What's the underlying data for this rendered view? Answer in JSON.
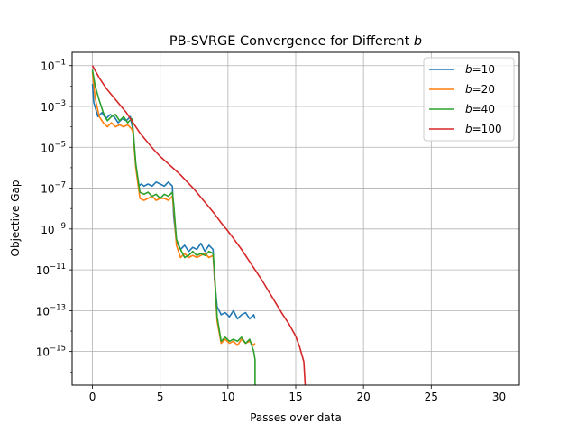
{
  "chart_data": {
    "type": "line",
    "title": "PB-SVRGE Convergence for Different",
    "title_var": "b",
    "xlabel": "Passes over data",
    "ylabel": "Objective Gap",
    "xlim": [
      -1.5,
      31.5
    ],
    "ylim_log10": [
      -16.65,
      -0.35
    ],
    "yscale": "log",
    "grid": true,
    "legend_position": "top-right",
    "x_ticks": [
      0,
      5,
      10,
      15,
      20,
      25,
      30
    ],
    "x_tick_labels": [
      "0",
      "5",
      "10",
      "15",
      "20",
      "25",
      "30"
    ],
    "y_ticks_exp": [
      -1,
      -3,
      -5,
      -7,
      -9,
      -11,
      -13,
      -15
    ],
    "y_tick_labels": [
      "10",
      "10",
      "10",
      "10",
      "10",
      "10",
      "10",
      "10"
    ],
    "y_tick_sup": [
      "−1",
      "−3",
      "−5",
      "−7",
      "−9",
      "−11",
      "−13",
      "−15"
    ],
    "series": [
      {
        "name": "b=10",
        "legend_var": "b",
        "legend_value": "=10",
        "color": "#1f77b4",
        "x": [
          0,
          0.1,
          0.4,
          0.7,
          1.0,
          1.3,
          1.6,
          1.9,
          2.2,
          2.5,
          2.8,
          3.0,
          3.2,
          3.4,
          3.6,
          3.8,
          4.1,
          4.4,
          4.7,
          5.0,
          5.3,
          5.6,
          5.9,
          6.0,
          6.2,
          6.5,
          6.8,
          7.1,
          7.4,
          7.7,
          8.0,
          8.3,
          8.6,
          8.9,
          9.0,
          9.2,
          9.5,
          9.8,
          10.1,
          10.4,
          10.7,
          11.0,
          11.3,
          11.6,
          11.9,
          12.0
        ],
        "y_log10": [
          -1.9,
          -2.8,
          -3.5,
          -3.3,
          -3.6,
          -3.4,
          -3.5,
          -3.8,
          -3.6,
          -3.7,
          -3.5,
          -4.2,
          -5.9,
          -6.9,
          -6.8,
          -6.9,
          -6.8,
          -6.9,
          -6.7,
          -6.8,
          -6.9,
          -6.7,
          -6.9,
          -8.4,
          -9.6,
          -10.0,
          -9.8,
          -10.1,
          -9.9,
          -10.0,
          -9.7,
          -10.1,
          -9.8,
          -10.0,
          -11.4,
          -12.8,
          -13.2,
          -13.1,
          -13.3,
          -13.0,
          -13.4,
          -13.2,
          -13.1,
          -13.4,
          -13.2,
          -13.4
        ]
      },
      {
        "name": "b=20",
        "legend_var": "b",
        "legend_value": "=20",
        "color": "#ff7f0e",
        "x": [
          0,
          0.2,
          0.5,
          0.8,
          1.1,
          1.4,
          1.7,
          2.0,
          2.3,
          2.6,
          2.9,
          3.0,
          3.2,
          3.5,
          3.8,
          4.1,
          4.4,
          4.7,
          5.0,
          5.3,
          5.6,
          5.9,
          6.0,
          6.2,
          6.5,
          6.8,
          7.1,
          7.4,
          7.7,
          8.0,
          8.3,
          8.6,
          8.9,
          9.0,
          9.2,
          9.5,
          9.8,
          10.1,
          10.4,
          10.7,
          11.0,
          11.3,
          11.6,
          11.9,
          12.0
        ],
        "y_log10": [
          -1.3,
          -2.6,
          -3.5,
          -3.8,
          -4.0,
          -3.8,
          -4.0,
          -3.9,
          -4.0,
          -3.9,
          -4.1,
          -4.3,
          -6.0,
          -7.5,
          -7.6,
          -7.5,
          -7.4,
          -7.6,
          -7.5,
          -7.5,
          -7.6,
          -7.4,
          -8.0,
          -9.8,
          -10.4,
          -10.2,
          -10.4,
          -10.3,
          -10.4,
          -10.3,
          -10.2,
          -10.4,
          -10.3,
          -11.2,
          -13.5,
          -14.6,
          -14.4,
          -14.6,
          -14.5,
          -14.7,
          -14.4,
          -14.6,
          -14.5,
          -14.7,
          -14.6
        ]
      },
      {
        "name": "b=40",
        "legend_var": "b",
        "legend_value": "=40",
        "color": "#2ca02c",
        "x": [
          0,
          0.2,
          0.5,
          0.8,
          1.1,
          1.4,
          1.7,
          2.0,
          2.3,
          2.6,
          2.9,
          3.0,
          3.2,
          3.5,
          3.8,
          4.1,
          4.4,
          4.7,
          5.0,
          5.3,
          5.6,
          5.9,
          6.0,
          6.2,
          6.5,
          6.8,
          7.1,
          7.4,
          7.7,
          8.0,
          8.3,
          8.6,
          8.9,
          9.0,
          9.2,
          9.5,
          9.8,
          10.1,
          10.4,
          10.7,
          11.0,
          11.3,
          11.6,
          11.9,
          12.0,
          12.0
        ],
        "y_log10": [
          -1.2,
          -2.0,
          -2.7,
          -3.3,
          -3.7,
          -3.5,
          -3.4,
          -3.7,
          -3.5,
          -3.8,
          -3.6,
          -4.1,
          -5.8,
          -7.2,
          -7.3,
          -7.2,
          -7.4,
          -7.3,
          -7.5,
          -7.3,
          -7.4,
          -7.2,
          -7.8,
          -9.5,
          -10.0,
          -10.4,
          -10.3,
          -10.1,
          -10.3,
          -10.2,
          -10.3,
          -10.1,
          -10.2,
          -11.0,
          -13.3,
          -14.5,
          -14.3,
          -14.5,
          -14.4,
          -14.5,
          -14.3,
          -14.6,
          -14.4,
          -15.0,
          -15.4,
          -16.65
        ]
      },
      {
        "name": "b=100",
        "legend_var": "b",
        "legend_value": "=100",
        "color": "#d62728",
        "x": [
          0,
          0.5,
          1.0,
          1.5,
          2.0,
          2.5,
          3.0,
          3.5,
          4.0,
          4.5,
          5.0,
          5.5,
          6.0,
          6.5,
          7.0,
          7.5,
          8.0,
          8.5,
          9.0,
          9.5,
          10.0,
          10.5,
          11.0,
          11.5,
          12.0,
          12.5,
          13.0,
          13.5,
          14.0,
          14.5,
          15.0,
          15.3,
          15.6,
          15.7
        ],
        "y_log10": [
          -1.0,
          -1.6,
          -2.1,
          -2.5,
          -2.9,
          -3.3,
          -3.8,
          -4.3,
          -4.7,
          -5.1,
          -5.45,
          -5.75,
          -6.05,
          -6.35,
          -6.7,
          -7.05,
          -7.45,
          -7.85,
          -8.25,
          -8.7,
          -9.1,
          -9.55,
          -10.0,
          -10.5,
          -11.0,
          -11.5,
          -12.05,
          -12.6,
          -13.15,
          -13.65,
          -14.25,
          -14.8,
          -15.5,
          -16.65
        ]
      }
    ]
  }
}
